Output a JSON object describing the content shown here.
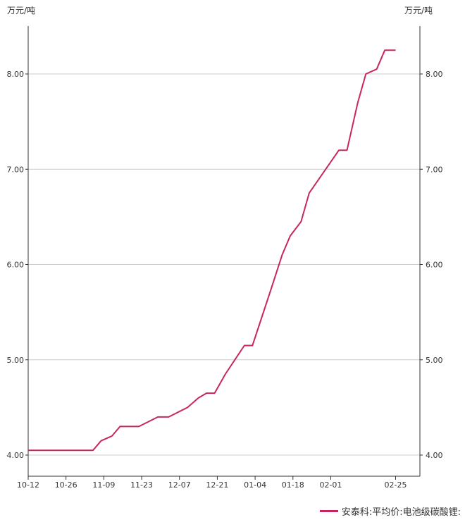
{
  "chart_data": {
    "type": "line",
    "y_unit_left": "万元/吨",
    "y_unit_right": "万元/吨",
    "ylim": [
      3.95,
      8.5
    ],
    "y_ticks": [
      4,
      5,
      6,
      7,
      8
    ],
    "y_tick_labels": [
      "4.00",
      "5.00",
      "6.00",
      "7.00",
      "8.00"
    ],
    "x_range": [
      "2020-10-12",
      "2021-03-06"
    ],
    "x_ticks": [
      "2020-10-12",
      "2020-10-26",
      "2020-11-09",
      "2020-11-23",
      "2020-12-07",
      "2020-12-21",
      "2021-01-04",
      "2021-01-18",
      "2021-02-01",
      "2021-02-25"
    ],
    "x_tick_labels": [
      "10-12",
      "10-26",
      "11-09",
      "11-23",
      "12-07",
      "12-21",
      "01-04",
      "01-18",
      "02-01",
      "02-25"
    ],
    "grid": true,
    "legend_position": "bottom-right",
    "series": [
      {
        "name": "安泰科:平均价:电池级碳酸锂:",
        "color": "#c8275d",
        "points": [
          [
            "2020-10-12",
            4.05
          ],
          [
            "2020-11-05",
            4.05
          ],
          [
            "2020-11-08",
            4.15
          ],
          [
            "2020-11-12",
            4.2
          ],
          [
            "2020-11-15",
            4.3
          ],
          [
            "2020-11-22",
            4.3
          ],
          [
            "2020-11-29",
            4.4
          ],
          [
            "2020-12-03",
            4.4
          ],
          [
            "2020-12-10",
            4.5
          ],
          [
            "2020-12-14",
            4.6
          ],
          [
            "2020-12-17",
            4.65
          ],
          [
            "2020-12-20",
            4.65
          ],
          [
            "2020-12-24",
            4.85
          ],
          [
            "2020-12-31",
            5.15
          ],
          [
            "2021-01-03",
            5.15
          ],
          [
            "2021-01-10",
            5.75
          ],
          [
            "2021-01-14",
            6.1
          ],
          [
            "2021-01-17",
            6.3
          ],
          [
            "2021-01-21",
            6.45
          ],
          [
            "2021-01-24",
            6.75
          ],
          [
            "2021-02-04",
            7.2
          ],
          [
            "2021-02-07",
            7.2
          ],
          [
            "2021-02-11",
            7.7
          ],
          [
            "2021-02-14",
            8.0
          ],
          [
            "2021-02-18",
            8.05
          ],
          [
            "2021-02-21",
            8.25
          ],
          [
            "2021-02-25",
            8.25
          ]
        ]
      }
    ]
  }
}
